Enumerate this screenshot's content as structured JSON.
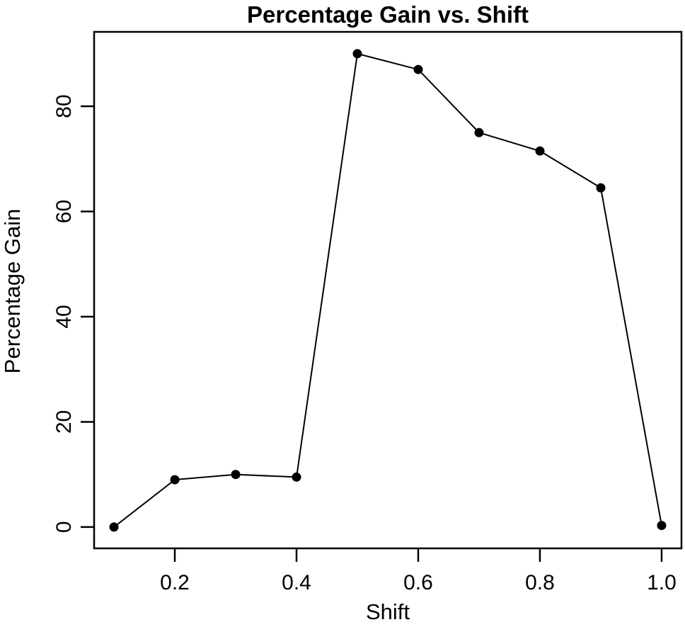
{
  "chart_data": {
    "type": "line",
    "title": "Percentage Gain vs. Shift",
    "xlabel": "Shift",
    "ylabel": "Percentage Gain",
    "series": [
      {
        "name": "percentage-gain",
        "x": [
          0.1,
          0.2,
          0.3,
          0.4,
          0.5,
          0.6,
          0.7,
          0.8,
          0.9,
          1.0
        ],
        "y": [
          0,
          9,
          10,
          9.5,
          90,
          87,
          75,
          71.5,
          64.5,
          0.3
        ]
      }
    ],
    "xticks": {
      "values": [
        0.2,
        0.4,
        0.6,
        0.8,
        1.0
      ],
      "labels": [
        "0.2",
        "0.4",
        "0.6",
        "0.8",
        "1.0"
      ]
    },
    "yticks": {
      "values": [
        0,
        20,
        40,
        60,
        80
      ],
      "labels": [
        "0",
        "20",
        "40",
        "60",
        "80"
      ]
    },
    "xlim": [
      0.0674,
      1.0326
    ],
    "ylim": [
      -4.05,
      94.15
    ],
    "grid": false,
    "legend": "none",
    "marker": "filled-circle",
    "line_color": "#000000",
    "marker_color": "#000000",
    "axis_color": "#000000",
    "background_color": "#ffffff",
    "y_tick_label_rotation_deg": -90
  }
}
